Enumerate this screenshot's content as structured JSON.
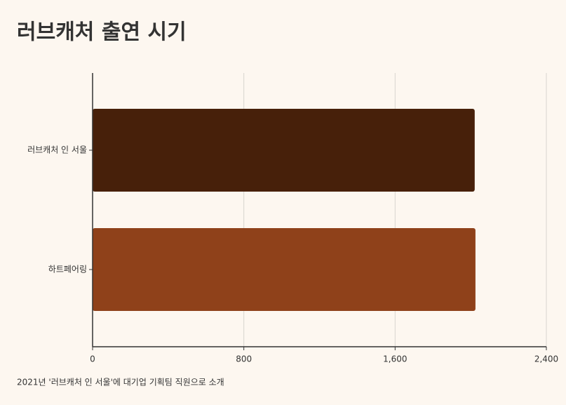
{
  "chart_data": {
    "type": "hbar",
    "title": "러브캐처 출연 시기",
    "categories": [
      "러브캐처 인 서울",
      "하트페어링"
    ],
    "series": [
      {
        "colors": [
          "#47200a",
          "#8f411a"
        ],
        "values": [
          2021,
          2025
        ]
      }
    ],
    "xlim": [
      0,
      2400
    ],
    "xticks": [
      0,
      800,
      {
        "value": 1600,
        "label": "1,600"
      },
      {
        "value": 2400,
        "label": "2,400"
      }
    ],
    "grid": true,
    "annotation": "2021년 '러브캐처 인 서울'에 대기업 기획팀 직원으로 소개"
  }
}
